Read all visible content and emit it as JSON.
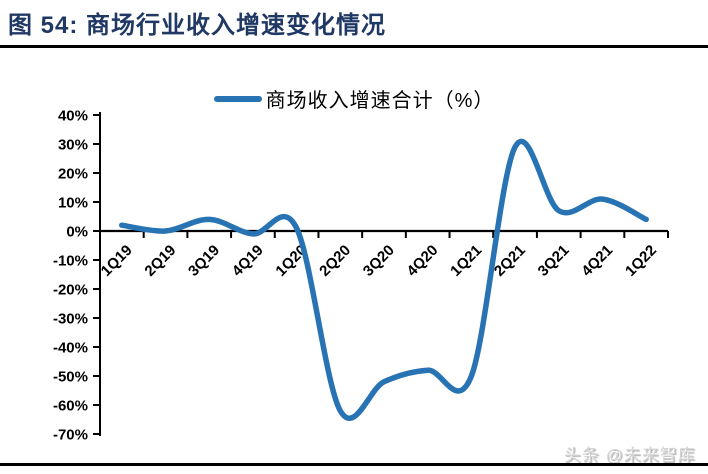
{
  "figure": {
    "title": "图 54:  商场行业收入增速变化情况",
    "watermark": "头条 @未来智库"
  },
  "colors": {
    "line": "#2873B4",
    "title_text": "#1F3864",
    "axis": "#000000",
    "watermark": "#D4D4D4"
  },
  "chart_data": {
    "type": "line",
    "title": "商场行业收入增速变化情况",
    "categories": [
      "1Q19",
      "2Q19",
      "3Q19",
      "4Q19",
      "1Q20",
      "2Q20",
      "3Q20",
      "4Q20",
      "1Q21",
      "2Q21",
      "3Q21",
      "4Q21",
      "1Q22"
    ],
    "series": [
      {
        "name": "商场收入增速合计（%）",
        "values": [
          2,
          0,
          4,
          -1,
          1,
          -62,
          -52,
          -48,
          -50,
          29,
          7,
          11,
          4
        ]
      }
    ],
    "xlabel": "",
    "ylabel": "",
    "ylim": [
      -70,
      40
    ],
    "ytick_step": 10,
    "ytick_labels": [
      "40%",
      "30%",
      "20%",
      "10%",
      "0%",
      "-10%",
      "-20%",
      "-30%",
      "-40%",
      "-50%",
      "-60%",
      "-70%"
    ],
    "grid": false,
    "legend_position": "top",
    "line_smooth": true,
    "x_labels_rotated_deg": 45
  }
}
